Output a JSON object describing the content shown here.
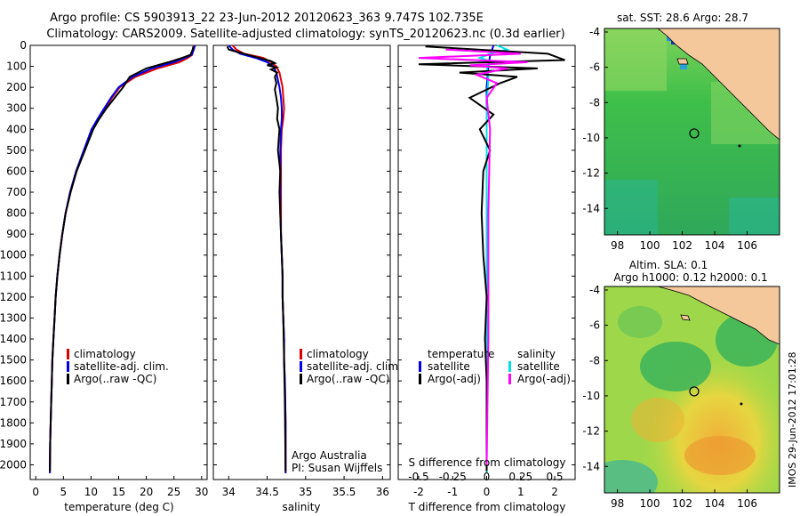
{
  "header": {
    "title_line1": "Argo profile: CS 5903913_22 23-Jun-2012 20120623_363 9.747S 102.735E",
    "title_line2": "Climatology: CARS2009. Satellite-adjusted climatology: synTS_20120623.nc (0.3d earlier)"
  },
  "side_text": "IMOS 29-Jun-2012 17:01:28",
  "colors": {
    "clim": "#e00000",
    "sat": "#0000ee",
    "argo": "#000000",
    "sal_sat": "#00e0e8",
    "sal_argo": "#ff00ff",
    "land": "#f5c89c"
  },
  "chart_data": [
    {
      "type": "line",
      "id": "temperature",
      "xlabel": "temperature (deg C)",
      "xlim": [
        -1,
        31
      ],
      "xticks": [
        0,
        5,
        10,
        15,
        20,
        25,
        30
      ],
      "ylim": [
        2070,
        0
      ],
      "yticks": [
        0,
        100,
        200,
        300,
        400,
        500,
        600,
        700,
        800,
        900,
        1000,
        1100,
        1200,
        1300,
        1400,
        1500,
        1600,
        1700,
        1800,
        1900,
        2000
      ],
      "legend": [
        "climatology",
        "satellite-adj. clim.",
        "Argo(..raw -QC)"
      ],
      "series": [
        {
          "name": "climatology",
          "color": "clim",
          "x": [
            28.6,
            28.5,
            28.3,
            27.5,
            26,
            22,
            18,
            15.2,
            13.8,
            12.5,
            11.3,
            10.2,
            8.8,
            7.4,
            6.3,
            5.4,
            4.8,
            4.3,
            3.9,
            3.6,
            3.4,
            3.2,
            3.0,
            2.9,
            2.8,
            2.7,
            2.6,
            2.55
          ],
          "y": [
            0,
            20,
            45,
            60,
            80,
            110,
            150,
            200,
            250,
            300,
            350,
            400,
            500,
            600,
            700,
            800,
            900,
            1000,
            1100,
            1200,
            1300,
            1400,
            1500,
            1600,
            1700,
            1800,
            1900,
            2040
          ]
        },
        {
          "name": "satellite-adj. clim.",
          "color": "sat",
          "x": [
            28.8,
            28.6,
            28.2,
            27,
            25,
            21,
            17.5,
            15,
            13.6,
            12.4,
            11.2,
            10.1,
            8.7,
            7.3,
            6.2,
            5.4,
            4.8,
            4.3,
            3.9,
            3.6,
            3.4,
            3.2,
            3.0,
            2.9,
            2.8,
            2.7,
            2.6,
            2.55
          ],
          "y": [
            0,
            20,
            45,
            60,
            80,
            110,
            150,
            200,
            250,
            300,
            350,
            400,
            500,
            600,
            700,
            800,
            900,
            1000,
            1100,
            1200,
            1300,
            1400,
            1500,
            1600,
            1700,
            1800,
            1900,
            2040
          ]
        },
        {
          "name": "Argo(..raw -QC)",
          "color": "argo",
          "x": [
            28.5,
            28.4,
            28.0,
            26.5,
            24,
            20,
            17,
            15.8,
            14.3,
            12.8,
            11.5,
            10.4,
            8.9,
            7.4,
            6.3,
            5.4,
            4.8,
            4.3,
            3.9,
            3.6,
            3.4,
            3.2,
            3.0,
            2.9,
            2.8,
            2.7,
            2.6,
            2.55
          ],
          "y": [
            5,
            20,
            45,
            60,
            80,
            110,
            150,
            200,
            250,
            300,
            350,
            400,
            500,
            600,
            700,
            800,
            900,
            1000,
            1100,
            1200,
            1300,
            1400,
            1500,
            1600,
            1700,
            1800,
            1900,
            2030
          ]
        }
      ]
    },
    {
      "type": "line",
      "id": "salinity",
      "xlabel": "salinity",
      "xlim": [
        33.8,
        36.1
      ],
      "xticks": [
        34,
        34.5,
        35,
        35.5,
        36
      ],
      "ylim": [
        2070,
        0
      ],
      "legend": [
        "climatology",
        "satellite-adj. clim.",
        "Argo(..raw -QC)"
      ],
      "annotation": [
        "Argo Australia",
        "PI: Susan Wijffels"
      ],
      "series": [
        {
          "name": "climatology",
          "color": "clim",
          "x": [
            34.05,
            34.1,
            34.2,
            34.45,
            34.55,
            34.62,
            34.66,
            34.7,
            34.71,
            34.72,
            34.71,
            34.69,
            34.68,
            34.68,
            34.68,
            34.68,
            34.68,
            34.69,
            34.7,
            34.7,
            34.71,
            34.72,
            34.72,
            34.73,
            34.74,
            34.74
          ],
          "y": [
            0,
            20,
            40,
            60,
            80,
            100,
            130,
            200,
            250,
            300,
            350,
            400,
            500,
            600,
            700,
            800,
            900,
            1000,
            1100,
            1200,
            1300,
            1400,
            1500,
            1600,
            1800,
            2040
          ]
        },
        {
          "name": "satellite-adj. clim.",
          "color": "sat",
          "x": [
            34.0,
            34.05,
            34.15,
            34.35,
            34.5,
            34.58,
            34.62,
            34.66,
            34.68,
            34.69,
            34.69,
            34.68,
            34.67,
            34.67,
            34.67,
            34.67,
            34.68,
            34.69,
            34.7,
            34.7,
            34.71,
            34.72,
            34.72,
            34.73,
            34.74,
            34.74
          ],
          "y": [
            0,
            20,
            40,
            60,
            80,
            100,
            130,
            200,
            250,
            300,
            350,
            400,
            500,
            600,
            700,
            800,
            900,
            1000,
            1100,
            1200,
            1300,
            1400,
            1500,
            1600,
            1800,
            2040
          ]
        },
        {
          "name": "Argo(..raw -QC)",
          "color": "argo",
          "x": [
            33.98,
            34.0,
            34.1,
            34.3,
            34.45,
            34.55,
            34.6,
            34.5,
            34.62,
            34.55,
            34.63,
            34.6,
            34.62,
            34.6,
            34.62,
            34.64,
            34.63,
            34.66,
            34.64,
            34.67,
            34.66,
            34.67,
            34.68,
            34.69,
            34.7,
            34.7,
            34.71,
            34.72,
            34.73,
            34.74
          ],
          "y": [
            5,
            20,
            30,
            50,
            65,
            75,
            85,
            95,
            105,
            115,
            130,
            150,
            180,
            210,
            250,
            300,
            350,
            400,
            500,
            600,
            700,
            800,
            900,
            1000,
            1100,
            1200,
            1300,
            1500,
            1700,
            2030
          ]
        }
      ]
    },
    {
      "type": "line",
      "id": "difference",
      "xlabel": "T difference from climatology",
      "xlabel_top": "S difference from climatology",
      "xlim": [
        -2.6,
        2.6
      ],
      "xticks": [
        -2,
        -1,
        0,
        1,
        2
      ],
      "xticks_top": [
        "-0.5",
        "-0.25",
        "0",
        "0.25",
        "0.5"
      ],
      "legend_t": {
        "title": "temperature",
        "items": [
          "satellite",
          "Argo(-adj)"
        ]
      },
      "legend_s": {
        "title": "salinity",
        "items": [
          "satellite",
          "Argo(-adj)"
        ]
      },
      "series": [
        {
          "name": "T satellite",
          "color": "sat",
          "x": [
            0.2,
            0.1,
            0.05,
            0,
            0,
            0,
            0,
            0,
            0,
            0
          ],
          "y": [
            0,
            50,
            100,
            200,
            400,
            800,
            1200,
            1600,
            1900,
            2040
          ]
        },
        {
          "name": "S satellite",
          "color": "sal_sat",
          "x": [
            0.3,
            0.6,
            0.1,
            -0.2,
            0.2,
            0.0,
            0.05,
            0.0,
            0.0,
            0.0,
            0.0,
            0.0
          ],
          "y": [
            0,
            20,
            40,
            60,
            80,
            100,
            150,
            300,
            600,
            1000,
            1500,
            2040
          ]
        },
        {
          "name": "T Argo(-adj)",
          "color": "argo",
          "x": [
            -1.8,
            1.8,
            2.3,
            -2.0,
            1.5,
            -0.8,
            0.9,
            0.4,
            -0.5,
            0.2,
            -0.2,
            0.1,
            -0.1,
            -0.15,
            -0.1,
            0.0,
            -0.05,
            0.0,
            0.0,
            0.0
          ],
          "y": [
            5,
            40,
            70,
            90,
            110,
            130,
            150,
            180,
            250,
            330,
            400,
            500,
            600,
            800,
            1000,
            1200,
            1400,
            1600,
            1800,
            2030
          ]
        },
        {
          "name": "S Argo(-adj)",
          "color": "sal_argo",
          "x": [
            -1.2,
            1.0,
            -2.0,
            1.2,
            -0.5,
            0.6,
            -0.3,
            0.3,
            0.0,
            0.1,
            0.05,
            0.05,
            0.0
          ],
          "y": [
            20,
            40,
            60,
            80,
            95,
            110,
            140,
            180,
            250,
            400,
            800,
            1400,
            2000
          ]
        }
      ]
    },
    {
      "type": "heatmap",
      "id": "sst_map",
      "title": "sat. SST: 28.6 Argo: 28.7",
      "xticks": [
        98,
        100,
        102,
        104,
        106
      ],
      "yticks": [
        -4,
        -6,
        -8,
        -10,
        -12,
        -14
      ],
      "xlim": [
        97.2,
        108
      ],
      "ylim": [
        -15.5,
        -3.8
      ],
      "argo_position": [
        102.735,
        -9.747
      ]
    },
    {
      "type": "heatmap",
      "id": "sla_map",
      "title_line1": "Altim. SLA: 0.1",
      "title_line2": "Argo h1000: 0.12 h2000: 0.1",
      "xticks": [
        98,
        100,
        102,
        104,
        106
      ],
      "yticks": [
        -4,
        -6,
        -8,
        -10,
        -12,
        -14
      ],
      "xlim": [
        97.2,
        108
      ],
      "ylim": [
        -15.5,
        -3.8
      ],
      "argo_position": [
        102.735,
        -9.747
      ]
    }
  ]
}
